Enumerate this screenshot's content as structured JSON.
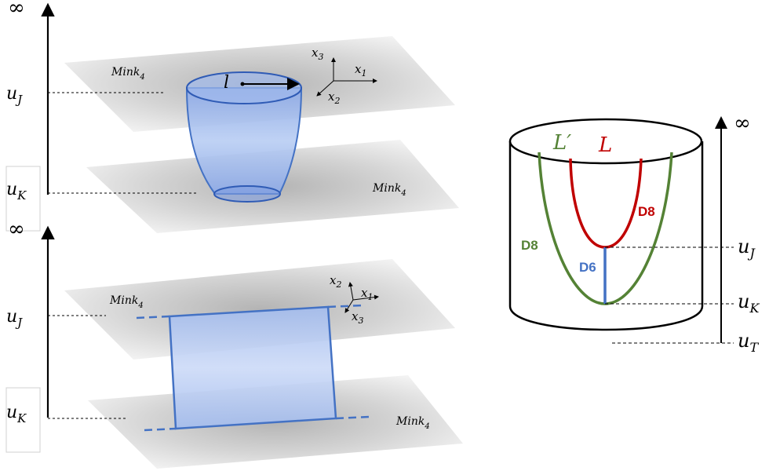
{
  "top_panel": {
    "infinity": "∞",
    "u_j": "u",
    "u_j_sub": "J",
    "u_k": "u",
    "u_k_sub": "K",
    "plane_upper_label": "Mink",
    "plane_upper_sub": "4",
    "plane_lower_label": "Mink",
    "plane_lower_sub": "4",
    "length_label": "l",
    "axes": {
      "x1": "x",
      "x1_sub": "1",
      "x2": "x",
      "x2_sub": "2",
      "x3": "x",
      "x3_sub": "3"
    }
  },
  "bottom_panel": {
    "infinity": "∞",
    "u_j": "u",
    "u_j_sub": "J",
    "u_k": "u",
    "u_k_sub": "K",
    "plane_upper_label": "Mink",
    "plane_upper_sub": "4",
    "plane_lower_label": "Mink",
    "plane_lower_sub": "4",
    "axes": {
      "x1": "x",
      "x1_sub": "1",
      "x2": "x",
      "x2_sub": "2",
      "x3": "x",
      "x3_sub": "3"
    }
  },
  "right_panel": {
    "infinity": "∞",
    "loop_inner": "L",
    "loop_outer": "L′",
    "d8_inner": "D8",
    "d8_outer": "D8",
    "d6": "D6",
    "u_j": "u",
    "u_j_sub": "J",
    "u_k": "u",
    "u_k_sub": "K",
    "u_t": "u",
    "u_t_sub": "T"
  },
  "colors": {
    "plane_light": "#f2f2f2",
    "plane_dark": "#b8b8b8",
    "brane_fill": "#a9c1ef",
    "brane_stroke": "#4472c4",
    "d8_red": "#c00000",
    "d8_green": "#548235",
    "d6_blue": "#4472c4"
  }
}
